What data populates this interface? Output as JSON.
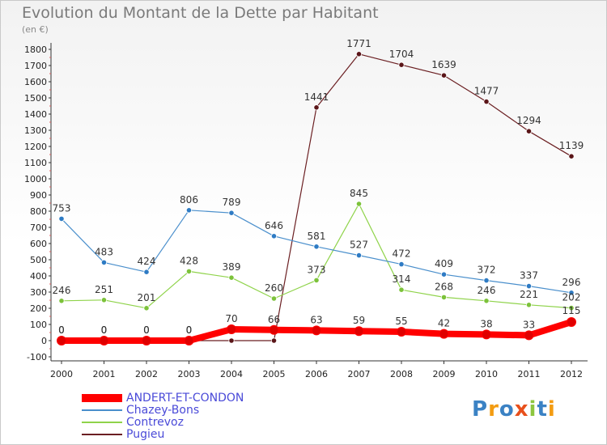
{
  "header": {
    "title": "Evolution du Montant de la Dette par Habitant",
    "subtitle": "(en €)"
  },
  "logo": {
    "text": "Proxiti",
    "colors": [
      "#3b82c4",
      "#f39c12",
      "#3b82c4",
      "#e8501c",
      "#8dc63f",
      "#3b82c4",
      "#f39c12"
    ]
  },
  "chart_data": {
    "type": "line",
    "title": "Evolution du Montant de la Dette par Habitant",
    "ylabel": "(en €)",
    "xlabel": "",
    "x": [
      "2000",
      "2001",
      "2002",
      "2003",
      "2004",
      "2005",
      "2006",
      "2007",
      "2008",
      "2009",
      "2010",
      "2011",
      "2012"
    ],
    "ylim": [
      -100,
      1800
    ],
    "yticks": [
      -100,
      0,
      100,
      200,
      300,
      400,
      500,
      600,
      700,
      800,
      900,
      1000,
      1100,
      1200,
      1300,
      1400,
      1500,
      1600,
      1700,
      1800
    ],
    "grid": false,
    "legend_position": "bottom-left",
    "series": [
      {
        "name": "ANDERT-ET-CONDON",
        "color": "#ff0000",
        "values": [
          0,
          0,
          0,
          0,
          70,
          66,
          63,
          59,
          55,
          42,
          38,
          33,
          115
        ]
      },
      {
        "name": "Chazey-Bons",
        "color": "#4a8fcc",
        "values": [
          753,
          483,
          424,
          806,
          789,
          646,
          581,
          527,
          472,
          409,
          372,
          337,
          296
        ]
      },
      {
        "name": "Contrevoz",
        "color": "#8fd34a",
        "values": [
          246,
          251,
          201,
          428,
          389,
          260,
          373,
          845,
          314,
          268,
          246,
          221,
          202
        ]
      },
      {
        "name": "Pugieu",
        "color": "#6b1f22",
        "values": [
          0,
          0,
          0,
          0,
          0,
          0,
          1441,
          1771,
          1704,
          1639,
          1477,
          1294,
          1139
        ]
      }
    ],
    "data_labels": {
      "ANDERT-ET-CONDON": [
        "0",
        "0",
        "0",
        "0",
        "70",
        "66",
        "63",
        "59",
        "55",
        "42",
        "38",
        "33",
        "115"
      ],
      "Chazey-Bons": [
        "753",
        "483",
        "424",
        "806",
        "789",
        "646",
        "581",
        "527",
        "472",
        "409",
        "372",
        "337",
        "296"
      ],
      "Contrevoz": [
        "246",
        "251",
        "201",
        "428",
        "389",
        "260",
        "373",
        "845",
        "314",
        "268",
        "246",
        "221",
        "202"
      ],
      "Pugieu": [
        "0",
        "0",
        "0",
        "0",
        "",
        "",
        "1441",
        "1771",
        "1704",
        "1639",
        "1477",
        "1294",
        "1139"
      ]
    }
  }
}
